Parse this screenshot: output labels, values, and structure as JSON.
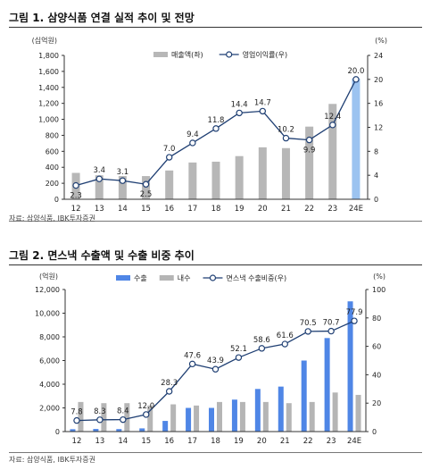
{
  "figures": [
    {
      "title": "그림 1. 삼양식품 연결 실적 추이 및 전망",
      "source": "자료: 삼양식품, IBK투자증권"
    },
    {
      "title": "그림 2. 면스낵 수출액 및 수출 비중 추이",
      "source": "자료: 삼양식품, IBK투자증권"
    }
  ],
  "chart_data": [
    {
      "type": "bar",
      "categories": [
        "12",
        "13",
        "14",
        "15",
        "16",
        "17",
        "18",
        "19",
        "20",
        "21",
        "22",
        "23",
        "24E"
      ],
      "left_unit": "(십억원)",
      "right_unit": "(%)",
      "ylim": [
        0,
        1800
      ],
      "yticks": [
        0,
        200,
        400,
        600,
        800,
        1000,
        1200,
        1400,
        1600,
        1800
      ],
      "y2lim": [
        0,
        24
      ],
      "y2ticks": [
        0,
        4,
        8,
        12,
        16,
        20,
        24
      ],
      "grid": false,
      "legend_position": "top",
      "series": [
        {
          "name": "매출액(좌)",
          "type": "bar",
          "axis": "left",
          "color": "#b7b7b7",
          "highlight_color": "#9cc3f0",
          "highlight_index": 12,
          "values": [
            330,
            300,
            290,
            290,
            360,
            460,
            470,
            540,
            650,
            640,
            909,
            1193,
            1510
          ]
        },
        {
          "name": "영업이익률(우)",
          "type": "line",
          "axis": "right",
          "color": "#1f3f73",
          "values": [
            2.3,
            3.4,
            3.1,
            2.5,
            7.0,
            9.4,
            11.8,
            14.4,
            14.7,
            10.2,
            9.9,
            12.4,
            20.0
          ],
          "labels": [
            "2.3",
            "3.4",
            "3.1",
            "2.5",
            "7.0",
            "9.4",
            "11.8",
            "14.4",
            "14.7",
            "10.2",
            "9.9",
            "12.4",
            "20.0"
          ],
          "label_below": [
            true,
            false,
            false,
            true,
            false,
            false,
            false,
            false,
            false,
            false,
            true,
            false,
            false
          ]
        }
      ]
    },
    {
      "type": "bar",
      "categories": [
        "12",
        "13",
        "14",
        "15",
        "16",
        "17",
        "18",
        "19",
        "20",
        "21",
        "22",
        "23",
        "24E"
      ],
      "left_unit": "(억원)",
      "right_unit": "(%)",
      "ylim": [
        0,
        12000
      ],
      "yticks": [
        0,
        2000,
        4000,
        6000,
        8000,
        10000,
        12000
      ],
      "y2lim": [
        0,
        100
      ],
      "y2ticks": [
        0,
        20,
        40,
        60,
        80,
        100
      ],
      "grid": false,
      "legend_position": "top",
      "series": [
        {
          "name": "수출",
          "type": "bar",
          "axis": "left",
          "color": "#4f86e6",
          "values": [
            200,
            220,
            210,
            270,
            900,
            2000,
            2000,
            2700,
            3600,
            3800,
            6000,
            7900,
            11000
          ]
        },
        {
          "name": "내수",
          "type": "bar",
          "axis": "left",
          "color": "#b5b5b5",
          "values": [
            2500,
            2400,
            2400,
            2200,
            2300,
            2200,
            2500,
            2500,
            2500,
            2400,
            2500,
            3300,
            3100
          ]
        },
        {
          "name": "면스낵 수출비중(우)",
          "type": "line",
          "axis": "right",
          "color": "#1f3f73",
          "values": [
            7.8,
            8.3,
            8.4,
            12.0,
            28.3,
            47.6,
            43.9,
            52.1,
            58.6,
            61.6,
            70.5,
            70.7,
            77.9
          ],
          "labels": [
            "7.8",
            "8.3",
            "8.4",
            "12.0",
            "28.3",
            "47.6",
            "43.9",
            "52.1",
            "58.6",
            "61.6",
            "70.5",
            "70.7",
            "77.9"
          ]
        }
      ]
    }
  ]
}
